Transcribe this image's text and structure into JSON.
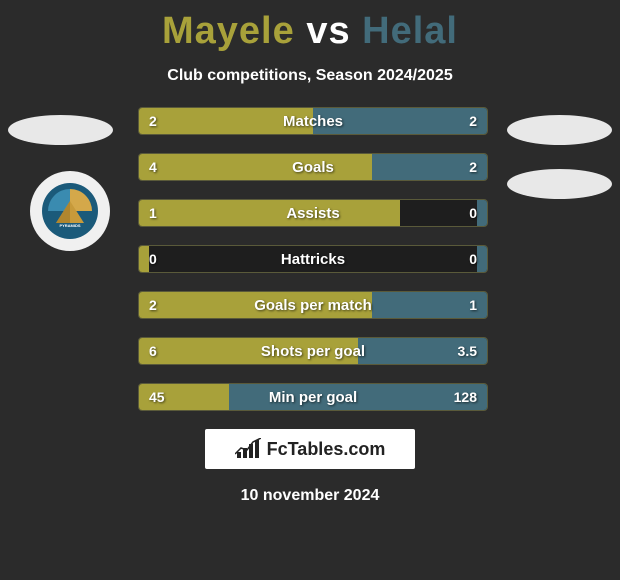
{
  "title": {
    "player1": "Mayele",
    "vs": "vs",
    "player2": "Helal"
  },
  "subtitle": "Club competitions, Season 2024/2025",
  "colors": {
    "player1": "#a8a13a",
    "player2": "#426b7a",
    "background": "#2b2b2b",
    "bar_track": "#1e1e1e",
    "text": "#ffffff"
  },
  "stats": [
    {
      "label": "Matches",
      "left_val": "2",
      "right_val": "2",
      "left_pct": 50,
      "right_pct": 50
    },
    {
      "label": "Goals",
      "left_val": "4",
      "right_val": "2",
      "left_pct": 67,
      "right_pct": 33
    },
    {
      "label": "Assists",
      "left_val": "1",
      "right_val": "0",
      "left_pct": 75,
      "right_pct": 3
    },
    {
      "label": "Hattricks",
      "left_val": "0",
      "right_val": "0",
      "left_pct": 3,
      "right_pct": 3
    },
    {
      "label": "Goals per match",
      "left_val": "2",
      "right_val": "1",
      "left_pct": 67,
      "right_pct": 33
    },
    {
      "label": "Shots per goal",
      "left_val": "6",
      "right_val": "3.5",
      "left_pct": 63,
      "right_pct": 37
    },
    {
      "label": "Min per goal",
      "left_val": "45",
      "right_val": "128",
      "left_pct": 26,
      "right_pct": 74
    }
  ],
  "footer_brand": "FcTables.com",
  "date": "10 november 2024",
  "club_name": "pyramids-fc"
}
